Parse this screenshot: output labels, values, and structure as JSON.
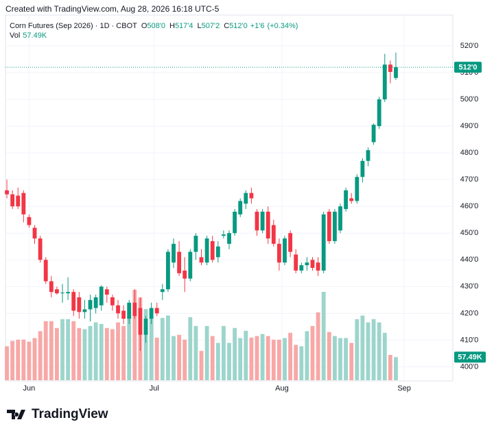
{
  "header": "Created with TradingView.com, Aug 28, 2026 16:18 UTC-5",
  "footer": "TradingView",
  "chart_data": {
    "type": "candlestick",
    "symbol": "Corn Futures (Sep 2026) · 1D · CBOT",
    "legend_keys": [
      "O",
      "H",
      "L",
      "C"
    ],
    "change": {
      "value": 1.75,
      "label": "+1'6"
    },
    "change_pct": {
      "value": 0.34,
      "label": "(+0.34%)"
    },
    "volume_key": "Vol",
    "up_color": "#089981",
    "down_color": "#f23645",
    "volume_up_color": "#9cd5cc",
    "volume_down_color": "#f7a8a7",
    "grid": true,
    "x": [
      0,
      1,
      2,
      3,
      4,
      5,
      6,
      7,
      8,
      9,
      10,
      11,
      12,
      13,
      14,
      15,
      16,
      17,
      18,
      19,
      20,
      21,
      22,
      23,
      24,
      25,
      26,
      27,
      28,
      29,
      30,
      31,
      32,
      33,
      34,
      35,
      36,
      37,
      38,
      39,
      40,
      41,
      42,
      43,
      44,
      45,
      46,
      47,
      48,
      49,
      50,
      51,
      52,
      53,
      54,
      55,
      56,
      57,
      58,
      59,
      60,
      61,
      62,
      63,
      64,
      65,
      66,
      67,
      68,
      69,
      70
    ],
    "xlim": [
      -0.25,
      80.25
    ],
    "xticks": [
      {
        "value": 4,
        "label": "Jun"
      },
      {
        "value": 26.5,
        "label": "Jul"
      },
      {
        "value": 49.5,
        "label": "Aug"
      },
      {
        "value": 71.5,
        "label": "Sep"
      }
    ],
    "ylim": [
      395,
      531.5
    ],
    "yticks": [
      {
        "value": 400,
        "label": "400'0"
      },
      {
        "value": 410,
        "label": "410'0"
      },
      {
        "value": 420,
        "label": "420'0"
      },
      {
        "value": 430,
        "label": "430'0"
      },
      {
        "value": 440,
        "label": "440'0"
      },
      {
        "value": 450,
        "label": "450'0"
      },
      {
        "value": 460,
        "label": "460'0"
      },
      {
        "value": 470,
        "label": "470'0"
      },
      {
        "value": 480,
        "label": "480'0"
      },
      {
        "value": 490,
        "label": "490'0"
      },
      {
        "value": 500,
        "label": "500'0"
      },
      {
        "value": 510,
        "label": "510'0"
      },
      {
        "value": 520,
        "label": "520'0"
      }
    ],
    "open": [
      466,
      464.5,
      464,
      465,
      456,
      452,
      448,
      440,
      432,
      429,
      427.5,
      427.5,
      428,
      426,
      420.5,
      421.5,
      422,
      423,
      429,
      426,
      423,
      421,
      418,
      424,
      422,
      412,
      418,
      422,
      428,
      429,
      439,
      443,
      436,
      433,
      443,
      441,
      439,
      447,
      441,
      449,
      446,
      450,
      457,
      461,
      465,
      458,
      451,
      458,
      453,
      446,
      439,
      450,
      442,
      436,
      438,
      440,
      439,
      436,
      458,
      447,
      451,
      459,
      463,
      462,
      471,
      477,
      484,
      490,
      500,
      513,
      508
    ],
    "high": [
      470,
      466,
      467,
      466,
      457,
      453,
      449,
      441,
      434,
      430,
      431,
      433.5,
      429,
      428,
      425,
      427,
      427,
      430.5,
      430,
      427,
      425,
      423,
      425,
      429,
      426,
      419,
      424,
      424,
      431,
      444,
      448,
      447,
      441,
      444,
      450,
      444,
      449,
      449,
      447,
      451,
      451,
      459,
      463,
      466,
      467,
      459,
      459,
      460,
      455,
      448,
      449,
      451,
      444,
      439,
      441,
      441,
      441,
      458,
      459,
      459,
      461,
      467,
      465,
      472,
      478,
      482,
      491,
      501,
      517,
      514.5,
      517.5
    ],
    "low": [
      463,
      459,
      459,
      454,
      452,
      446,
      439,
      431,
      426,
      427,
      424,
      425,
      419,
      418,
      418,
      417,
      420,
      421,
      424,
      421,
      418,
      416,
      416,
      418,
      406,
      409,
      416,
      419,
      425,
      428,
      437,
      434,
      428,
      432,
      440,
      438,
      438,
      439,
      439,
      448,
      444,
      449,
      456,
      459,
      461,
      449,
      450,
      446,
      445,
      436,
      438,
      441,
      435,
      435,
      436,
      436,
      434,
      435,
      446,
      446,
      450,
      458,
      461,
      461,
      469,
      475,
      483,
      489,
      499,
      506,
      507.25
    ],
    "close": [
      464.5,
      460,
      460,
      457,
      453,
      448,
      440,
      432,
      428,
      427.5,
      427.75,
      428,
      421,
      420.5,
      421.5,
      425,
      426,
      430,
      427,
      423,
      420,
      418,
      424,
      419,
      412,
      418,
      422,
      420,
      429,
      443,
      446,
      435,
      433,
      443,
      449,
      439,
      448,
      440,
      445,
      449.5,
      450,
      458,
      462,
      465,
      463,
      451,
      458,
      448,
      446,
      439,
      448,
      443,
      436,
      438,
      439,
      437,
      436,
      457,
      447,
      458,
      460,
      466,
      462,
      471,
      477,
      481,
      490.5,
      500,
      513,
      510.25,
      512
    ],
    "close_labels": [
      null,
      null,
      null,
      null,
      null,
      null,
      null,
      null,
      null,
      null,
      null,
      null,
      null,
      null,
      null,
      null,
      null,
      null,
      null,
      null,
      null,
      null,
      null,
      null,
      null,
      null,
      null,
      null,
      null,
      null,
      null,
      null,
      null,
      null,
      null,
      null,
      null,
      null,
      null,
      null,
      null,
      null,
      null,
      null,
      null,
      null,
      null,
      null,
      null,
      null,
      null,
      null,
      null,
      null,
      null,
      null,
      null,
      null,
      null,
      null,
      null,
      null,
      null,
      null,
      null,
      null,
      null,
      null,
      null,
      null,
      "512'0"
    ],
    "open_labels": [
      null,
      null,
      null,
      null,
      null,
      null,
      null,
      null,
      null,
      null,
      null,
      null,
      null,
      null,
      null,
      null,
      null,
      null,
      null,
      null,
      null,
      null,
      null,
      null,
      null,
      null,
      null,
      null,
      null,
      null,
      null,
      null,
      null,
      null,
      null,
      null,
      null,
      null,
      null,
      null,
      null,
      null,
      null,
      null,
      null,
      null,
      null,
      null,
      null,
      null,
      null,
      null,
      null,
      null,
      null,
      null,
      null,
      null,
      null,
      null,
      null,
      null,
      null,
      null,
      null,
      null,
      null,
      null,
      null,
      null,
      "508'0"
    ],
    "high_labels": [
      null,
      null,
      null,
      null,
      null,
      null,
      null,
      null,
      null,
      null,
      null,
      null,
      null,
      null,
      null,
      null,
      null,
      null,
      null,
      null,
      null,
      null,
      null,
      null,
      null,
      null,
      null,
      null,
      null,
      null,
      null,
      null,
      null,
      null,
      null,
      null,
      null,
      null,
      null,
      null,
      null,
      null,
      null,
      null,
      null,
      null,
      null,
      null,
      null,
      null,
      null,
      null,
      null,
      null,
      null,
      null,
      null,
      null,
      null,
      null,
      null,
      null,
      null,
      null,
      null,
      null,
      null,
      null,
      null,
      null,
      "517'4"
    ],
    "low_labels": [
      null,
      null,
      null,
      null,
      null,
      null,
      null,
      null,
      null,
      null,
      null,
      null,
      null,
      null,
      null,
      null,
      null,
      null,
      null,
      null,
      null,
      null,
      null,
      null,
      null,
      null,
      null,
      null,
      null,
      null,
      null,
      null,
      null,
      null,
      null,
      null,
      null,
      null,
      null,
      null,
      null,
      null,
      null,
      null,
      null,
      null,
      null,
      null,
      null,
      null,
      null,
      null,
      null,
      null,
      null,
      null,
      null,
      null,
      null,
      null,
      null,
      null,
      null,
      null,
      null,
      null,
      null,
      null,
      null,
      null,
      "507'2"
    ],
    "volume": [
      84500,
      98000,
      101000,
      101000,
      96000,
      105000,
      122000,
      147000,
      147000,
      130000,
      152000,
      152000,
      147000,
      130000,
      127000,
      135000,
      144000,
      140000,
      130000,
      127000,
      144000,
      135000,
      169000,
      225000,
      206000,
      177000,
      157000,
      106000,
      155000,
      161000,
      110000,
      113000,
      101000,
      157000,
      135000,
      73000,
      135000,
      110000,
      93000,
      135000,
      93000,
      130000,
      105000,
      123000,
      106000,
      110000,
      115000,
      110000,
      101000,
      101000,
      105000,
      118000,
      88000,
      84500,
      122000,
      135000,
      169000,
      220000,
      120000,
      110000,
      105000,
      105000,
      93000,
      152000,
      161000,
      144000,
      152000,
      144000,
      118000,
      63000,
      57490
    ],
    "volume_labels": [
      null,
      null,
      null,
      null,
      null,
      null,
      null,
      null,
      null,
      null,
      null,
      null,
      null,
      null,
      null,
      null,
      null,
      null,
      null,
      null,
      null,
      null,
      null,
      null,
      null,
      null,
      null,
      null,
      null,
      null,
      null,
      null,
      null,
      null,
      null,
      null,
      null,
      null,
      null,
      null,
      null,
      null,
      null,
      null,
      null,
      null,
      null,
      null,
      null,
      null,
      null,
      null,
      null,
      null,
      null,
      null,
      null,
      null,
      null,
      null,
      null,
      null,
      null,
      null,
      null,
      null,
      null,
      null,
      null,
      null,
      "57.49K"
    ]
  }
}
